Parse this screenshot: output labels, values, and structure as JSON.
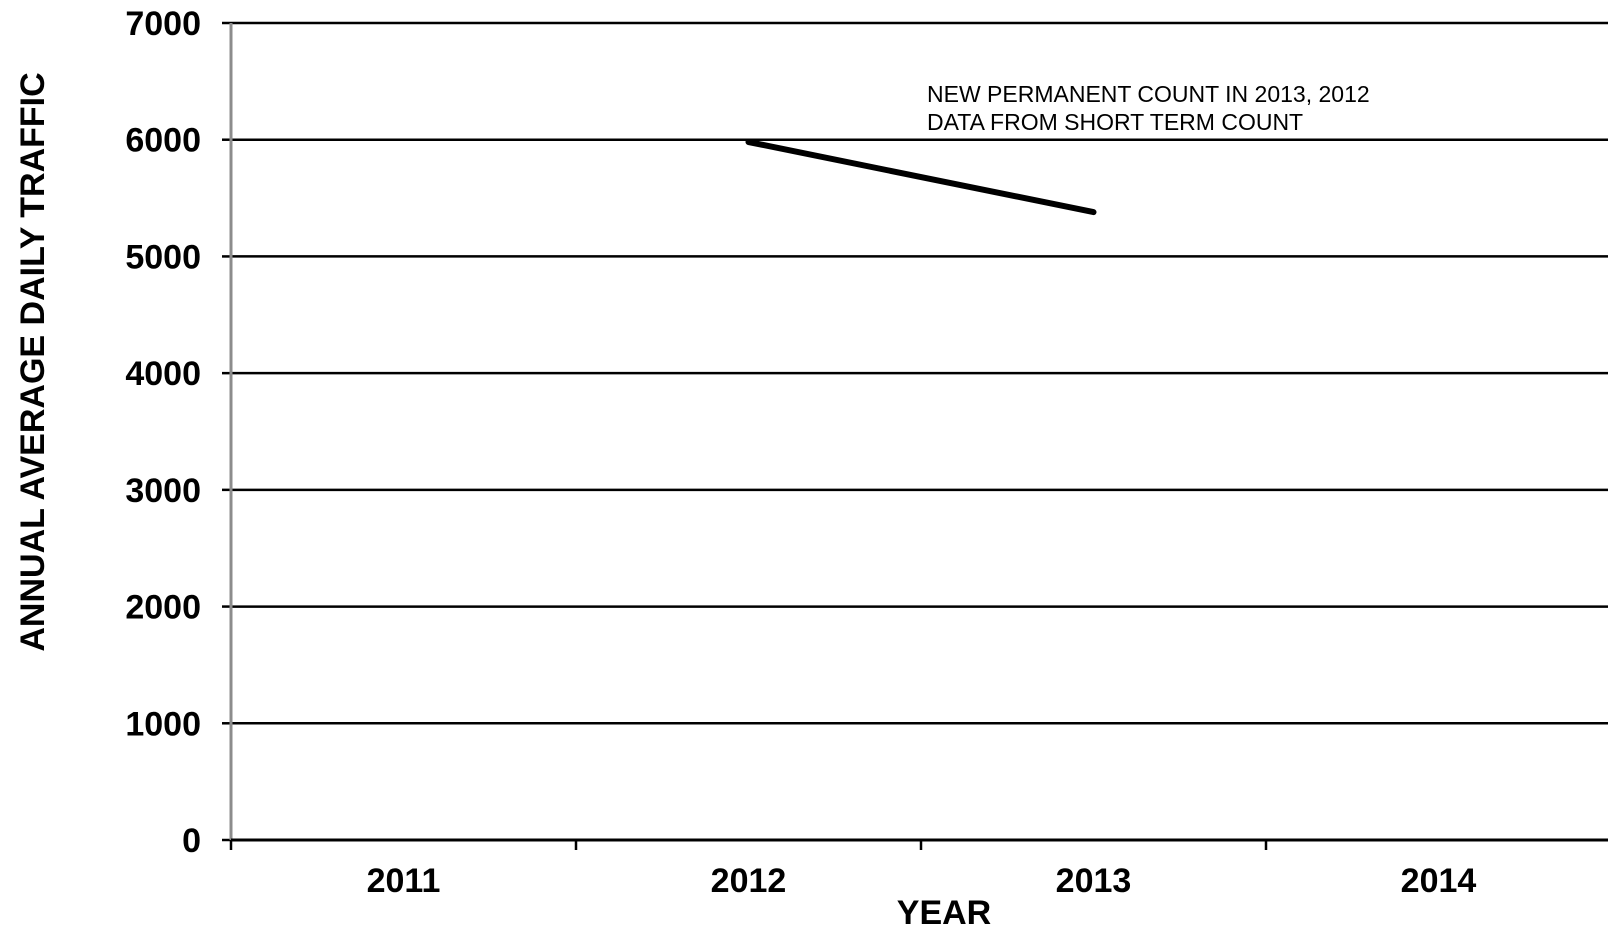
{
  "chart_data": {
    "type": "line",
    "title": "",
    "xlabel": "YEAR",
    "ylabel": "ANNUAL AVERAGE DAILY TRAFFIC",
    "categories": [
      "2011",
      "2012",
      "2013",
      "2014"
    ],
    "series": [
      {
        "values": [
          null,
          5980,
          5380,
          null
        ],
        "color": "#000000"
      }
    ],
    "ylim": [
      0,
      7000
    ],
    "yticks": [
      0,
      1000,
      2000,
      3000,
      4000,
      5000,
      6000,
      7000
    ],
    "grid": true,
    "legend": "none",
    "annotation_lines": [
      "NEW PERMANENT COUNT IN 2013, 2012",
      "DATA FROM SHORT TERM COUNT"
    ]
  }
}
